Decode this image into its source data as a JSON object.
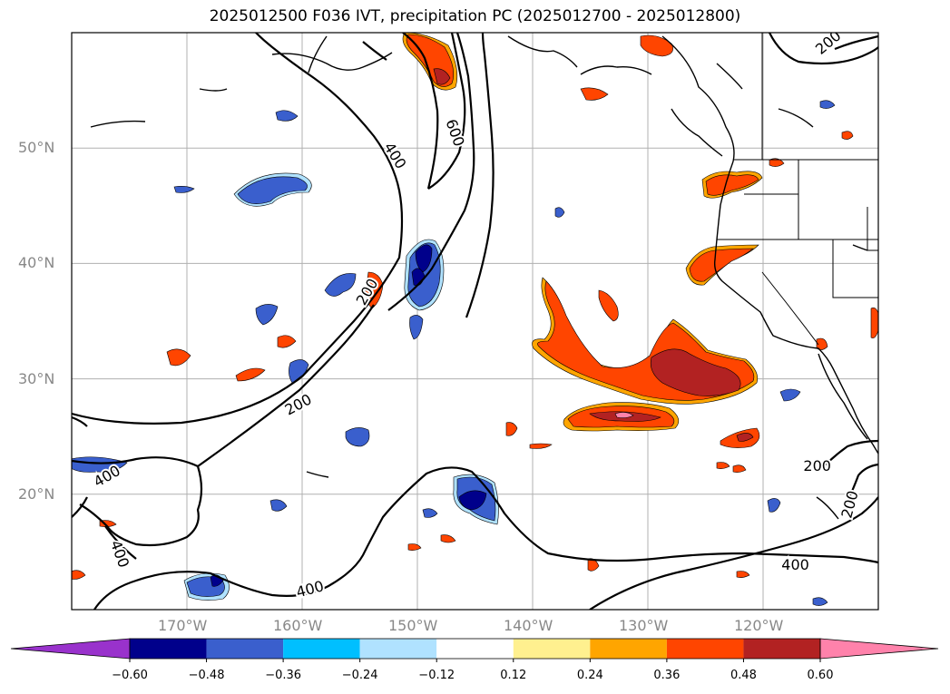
{
  "title": "2025012500 F036 IVT, precipitation PC (2025012700 - 2025012800)",
  "map": {
    "lon_range": [
      -180,
      -110
    ],
    "lat_range": [
      10,
      60
    ],
    "lat_ticks": [
      {
        "value": 50,
        "label": "50°N"
      },
      {
        "value": 40,
        "label": "40°N"
      },
      {
        "value": 30,
        "label": "30°N"
      },
      {
        "value": 20,
        "label": "20°N"
      }
    ],
    "lon_ticks": [
      {
        "value": -170,
        "label": "170°W"
      },
      {
        "value": -160,
        "label": "160°W"
      },
      {
        "value": -150,
        "label": "150°W"
      },
      {
        "value": -140,
        "label": "140°W"
      },
      {
        "value": -130,
        "label": "130°W"
      },
      {
        "value": -120,
        "label": "120°W"
      }
    ],
    "grid": true,
    "contour_labels": [
      {
        "text": "600",
        "lon": -146.8,
        "lat": 51.3,
        "rotate": 70
      },
      {
        "text": "400",
        "lon": -152.0,
        "lat": 49.3,
        "rotate": 58
      },
      {
        "text": "200",
        "lon": -154.3,
        "lat": 37.5,
        "rotate": -60
      },
      {
        "text": "200",
        "lon": -160.3,
        "lat": 27.7,
        "rotate": -28
      },
      {
        "text": "400",
        "lon": -176.9,
        "lat": 21.5,
        "rotate": -30
      },
      {
        "text": "400",
        "lon": -175.9,
        "lat": 14.8,
        "rotate": 70
      },
      {
        "text": "400",
        "lon": -159.3,
        "lat": 11.7,
        "rotate": -15
      },
      {
        "text": "200",
        "lon": -114.3,
        "lat": 59.1,
        "rotate": -40
      },
      {
        "text": "200",
        "lon": -115.3,
        "lat": 22.4,
        "rotate": 0
      },
      {
        "text": "200",
        "lon": -112.4,
        "lat": 19.1,
        "rotate": -75
      },
      {
        "text": "400",
        "lon": -117.2,
        "lat": 13.8,
        "rotate": 0
      }
    ]
  },
  "colorbar": {
    "colors": [
      "#9932cc",
      "#00008b",
      "#3a5fcd",
      "#00bfff",
      "#b0e2ff",
      "#ffffff",
      "#fff08f",
      "#ffa500",
      "#ff4500",
      "#b22222",
      "#ff82ab"
    ],
    "labels": [
      "−0.60",
      "−0.48",
      "−0.36",
      "−0.24",
      "−0.12",
      "0.12",
      "0.24",
      "0.36",
      "0.48",
      "0.60"
    ]
  }
}
